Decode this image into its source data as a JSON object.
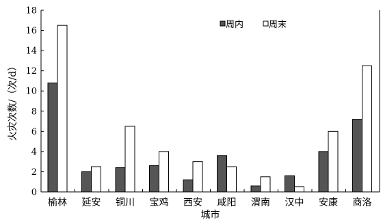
{
  "chart_data": {
    "type": "bar",
    "xlabel": "城市",
    "ylabel": "火灾次数/（次/d）",
    "ylim": [
      0,
      18
    ],
    "yticks": [
      0,
      2,
      4,
      6,
      8,
      10,
      12,
      14,
      16,
      18
    ],
    "grid": false,
    "legend_position": "top-right",
    "categories": [
      "榆林",
      "延安",
      "铜川",
      "宝鸡",
      "西安",
      "咸阳",
      "渭南",
      "汉中",
      "安康",
      "商洛"
    ],
    "series": [
      {
        "name": "周内",
        "color": "#555555",
        "values": [
          10.8,
          2.0,
          2.4,
          2.6,
          1.2,
          3.6,
          0.6,
          1.6,
          4.0,
          7.2
        ]
      },
      {
        "name": "周末",
        "color": "#ffffff",
        "values": [
          16.5,
          2.5,
          6.5,
          4.0,
          3.0,
          2.5,
          1.5,
          0.5,
          6.0,
          12.5
        ]
      }
    ]
  }
}
